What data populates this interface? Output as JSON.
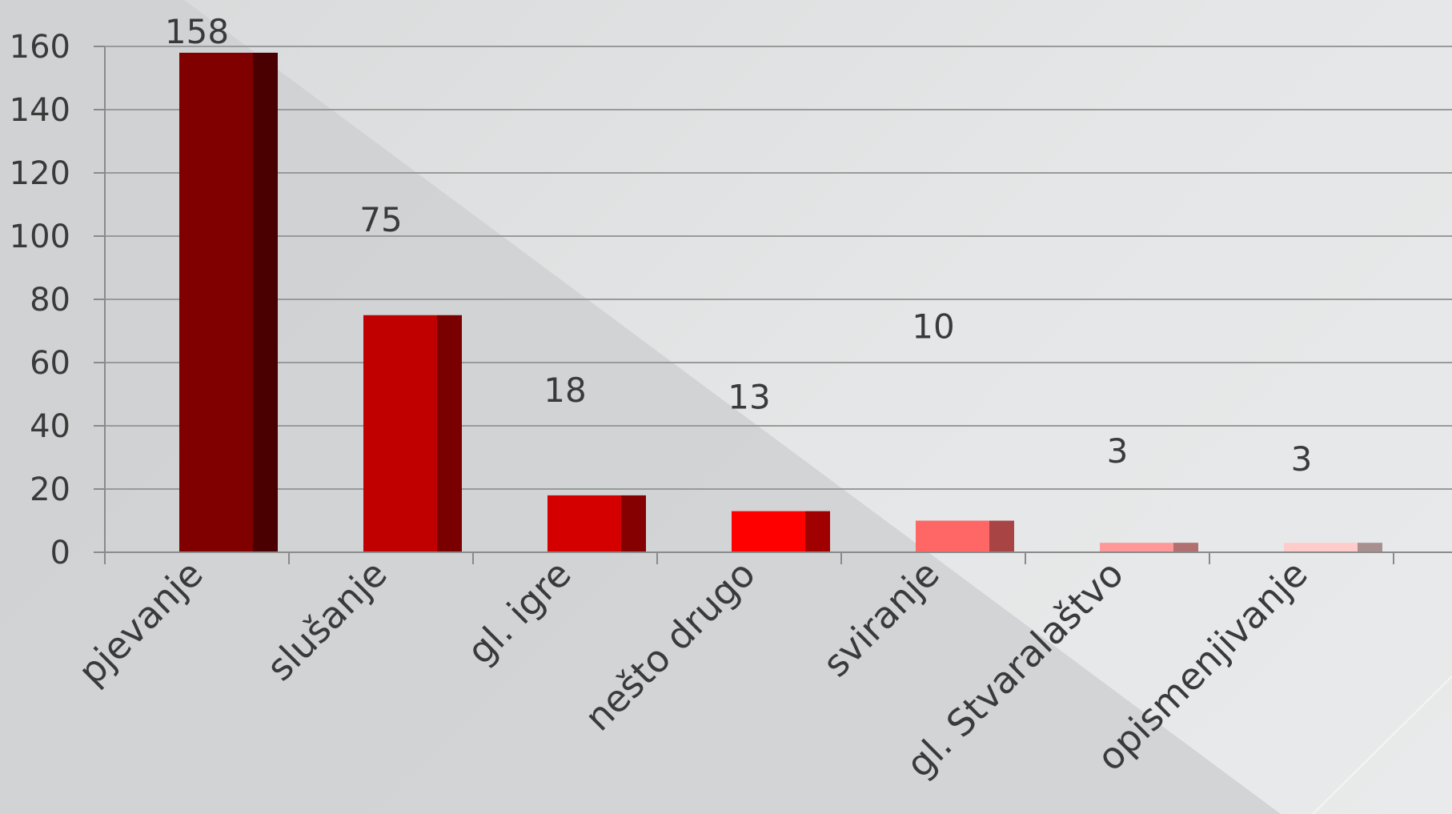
{
  "chart_data": {
    "type": "bar",
    "categories": [
      "pjevanje",
      "slušanje",
      "gl. igre",
      "nešto drugo",
      "sviranje",
      "gl. Stvaralaštvo",
      "opismenjivanje"
    ],
    "values": [
      158,
      75,
      18,
      13,
      10,
      3,
      3
    ],
    "data_labels": [
      "158",
      "75",
      "18",
      "13",
      "10",
      "3",
      "3"
    ],
    "y_ticks": [
      "0",
      "20",
      "40",
      "60",
      "80",
      "100",
      "120",
      "140",
      "160"
    ],
    "ylim": [
      0,
      160
    ],
    "title": "",
    "xlabel": "",
    "ylabel": "",
    "grid": true,
    "legend": "none",
    "bar_colors": [
      "#800000",
      "#c00000",
      "#d40000",
      "#ff0000",
      "#ff6666",
      "#ff9999",
      "#ffcccc"
    ],
    "bar_side_colors": [
      "#4a0000",
      "#7a0000",
      "#850000",
      "#a00000",
      "#a84444",
      "#b07070",
      "#a89090"
    ]
  }
}
